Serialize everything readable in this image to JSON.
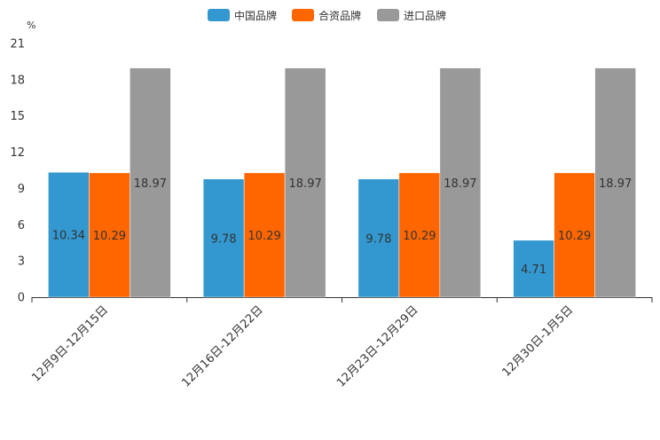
{
  "chart_data": {
    "type": "bar",
    "unit_label": "%",
    "categories": [
      "12月9日-12月15日",
      "12月16日-12月22日",
      "12月23日-12月29日",
      "12月30日-1月5日"
    ],
    "series": [
      {
        "name": "中国品牌",
        "color": "#3398d0",
        "values": [
          10.34,
          9.78,
          9.78,
          4.71
        ]
      },
      {
        "name": "合资品牌",
        "color": "#ff6600",
        "values": [
          10.29,
          10.29,
          10.29,
          10.29
        ]
      },
      {
        "name": "进口品牌",
        "color": "#999999",
        "values": [
          18.97,
          18.97,
          18.97,
          18.97
        ]
      }
    ],
    "ylim": [
      0,
      21
    ],
    "yticks": [
      0,
      3,
      6,
      9,
      12,
      15,
      18,
      21
    ],
    "legend_position": "top-center",
    "grid": false
  }
}
